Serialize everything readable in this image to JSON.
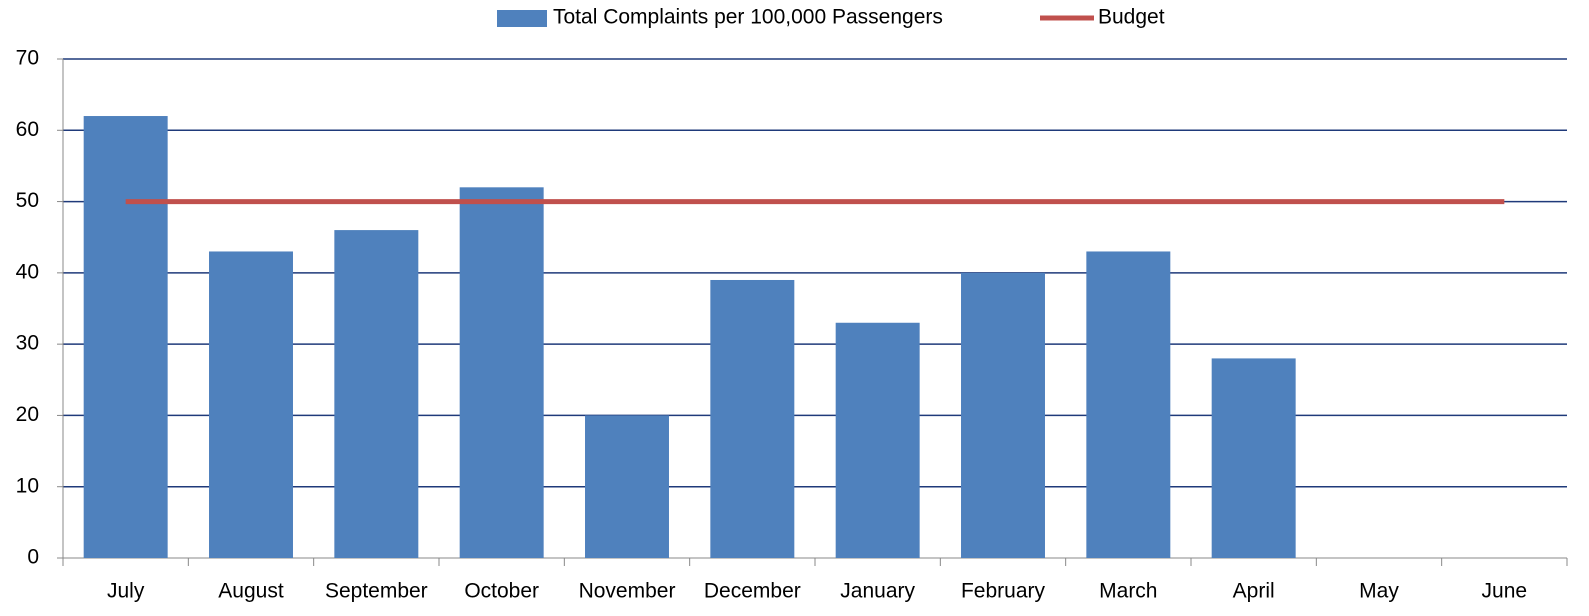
{
  "chart_data": {
    "type": "bar",
    "categories": [
      "July",
      "August",
      "September",
      "October",
      "November",
      "December",
      "January",
      "February",
      "March",
      "April",
      "May",
      "June"
    ],
    "series": [
      {
        "name": "Total Complaints per 100,000 Passengers",
        "color": "#4f81bd",
        "type": "bar",
        "values": [
          62,
          43,
          46,
          52,
          20,
          39,
          33,
          40,
          43,
          28,
          null,
          null
        ]
      },
      {
        "name": "Budget",
        "color": "#c0504d",
        "type": "line",
        "values": [
          50,
          50,
          50,
          50,
          50,
          50,
          50,
          50,
          50,
          50,
          50,
          50
        ]
      }
    ],
    "ylim": [
      0,
      70
    ],
    "yticks": [
      0,
      10,
      20,
      30,
      40,
      50,
      60,
      70
    ],
    "grid": true,
    "legend": "top"
  }
}
